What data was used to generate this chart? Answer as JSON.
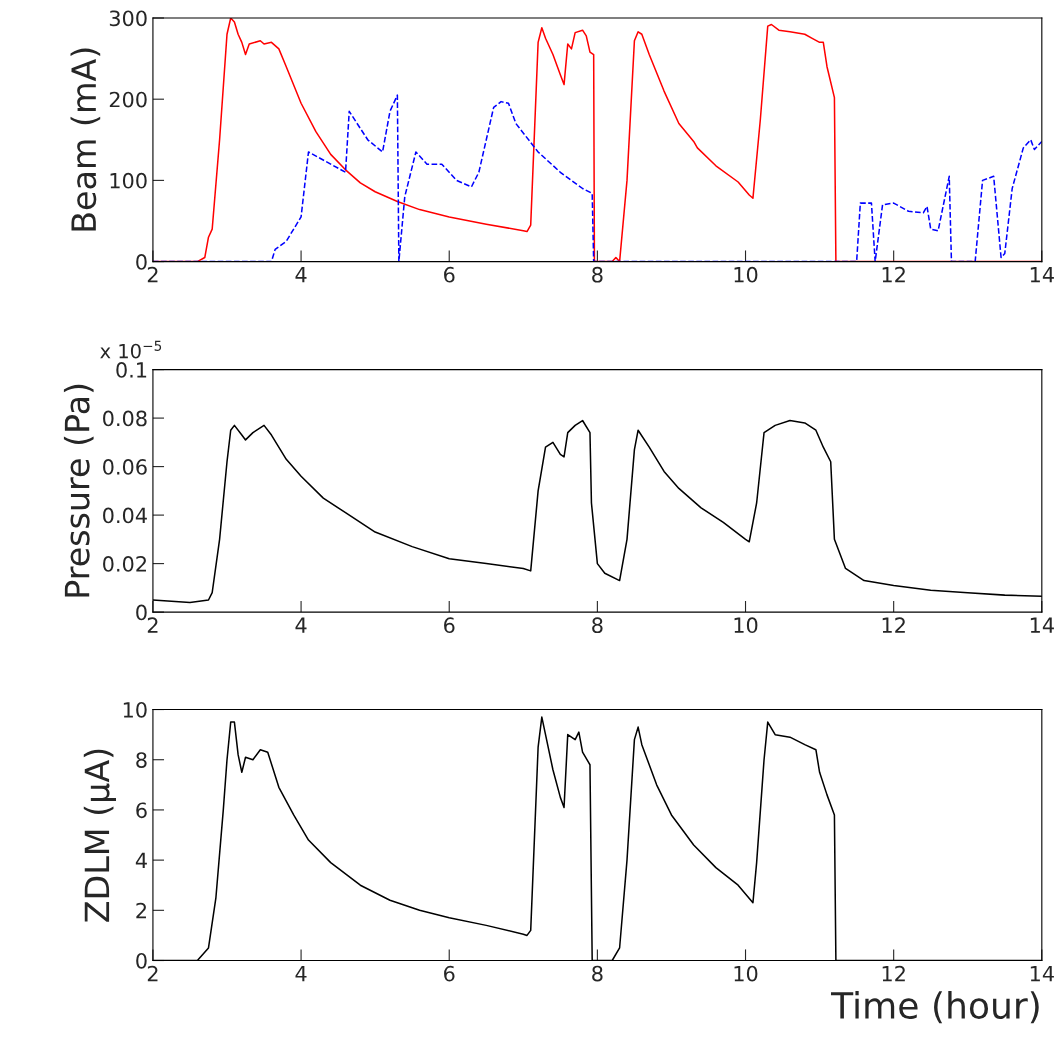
{
  "chart_data": [
    {
      "type": "line",
      "ylabel": "Beam (mA)",
      "xlim": [
        2,
        14
      ],
      "xticks": [
        2,
        4,
        6,
        8,
        10,
        12,
        14
      ],
      "ylim": [
        0,
        300
      ],
      "yticks": [
        0,
        100,
        200,
        300
      ],
      "grid": false,
      "legend": false,
      "series": [
        {
          "color": "#ff0000",
          "line_style": "solid",
          "x": [
            2,
            2.6,
            2.7,
            2.75,
            2.8,
            2.9,
            3.0,
            3.05,
            3.1,
            3.15,
            3.2,
            3.25,
            3.3,
            3.45,
            3.5,
            3.6,
            3.7,
            3.8,
            4.0,
            4.2,
            4.4,
            4.6,
            4.8,
            5.0,
            5.3,
            5.6,
            6.0,
            6.5,
            7.0,
            7.05,
            7.1,
            7.2,
            7.25,
            7.3,
            7.4,
            7.5,
            7.55,
            7.6,
            7.65,
            7.7,
            7.8,
            7.85,
            7.9,
            7.95,
            7.96,
            8.2,
            8.25,
            8.3,
            8.4,
            8.5,
            8.55,
            8.6,
            8.7,
            8.9,
            9.1,
            9.3,
            9.35,
            9.6,
            9.9,
            10.05,
            10.1,
            10.2,
            10.3,
            10.35,
            10.45,
            10.6,
            10.8,
            10.9,
            11.0,
            11.05,
            11.1,
            11.2,
            11.22,
            14
          ],
          "values": [
            0,
            0,
            5,
            30,
            40,
            150,
            280,
            300,
            295,
            280,
            270,
            255,
            268,
            272,
            268,
            270,
            262,
            240,
            195,
            160,
            132,
            113,
            97,
            86,
            74,
            64,
            55,
            46,
            38,
            37,
            45,
            270,
            288,
            275,
            255,
            230,
            218,
            268,
            262,
            282,
            285,
            278,
            258,
            255,
            0,
            0,
            5,
            0,
            100,
            272,
            283,
            280,
            255,
            210,
            170,
            148,
            140,
            118,
            98,
            82,
            78,
            175,
            290,
            292,
            285,
            283,
            280,
            275,
            270,
            270,
            240,
            202,
            0,
            0
          ]
        },
        {
          "color": "#0000ff",
          "line_style": "dashed",
          "x": [
            2,
            3.6,
            3.65,
            3.8,
            3.9,
            4.0,
            4.1,
            4.4,
            4.6,
            4.65,
            4.9,
            5.1,
            5.2,
            5.3,
            5.32,
            5.4,
            5.55,
            5.7,
            5.9,
            6.1,
            6.3,
            6.4,
            6.6,
            6.7,
            6.8,
            6.9,
            7.2,
            7.5,
            7.8,
            7.93,
            7.95,
            11.5,
            11.55,
            11.7,
            11.75,
            11.85,
            12.0,
            12.2,
            12.4,
            12.45,
            12.5,
            12.6,
            12.75,
            12.78,
            13.1,
            13.2,
            13.35,
            13.45,
            13.5,
            13.6,
            13.75,
            13.85,
            13.9,
            14
          ],
          "values": [
            0,
            0,
            15,
            25,
            40,
            55,
            135,
            120,
            110,
            185,
            150,
            135,
            185,
            205,
            0,
            80,
            135,
            120,
            120,
            100,
            92,
            110,
            190,
            197,
            195,
            170,
            135,
            110,
            90,
            84,
            0,
            0,
            72,
            72,
            0,
            70,
            72,
            62,
            60,
            68,
            40,
            38,
            105,
            0,
            0,
            100,
            105,
            5,
            10,
            90,
            140,
            150,
            138,
            148
          ]
        }
      ]
    },
    {
      "type": "line",
      "ylabel": "Pressure (Pa)",
      "annotations": [
        "x 10$^{−5}$"
      ],
      "xlim": [
        2,
        14
      ],
      "xticks": [
        2,
        4,
        6,
        8,
        10,
        12,
        14
      ],
      "ylim": [
        0,
        0.1
      ],
      "yticks": [
        0,
        0.02,
        0.04,
        0.06,
        0.08,
        0.1
      ],
      "grid": false,
      "legend": false,
      "series": [
        {
          "color": "#000000",
          "line_style": "solid",
          "x": [
            2,
            2.5,
            2.75,
            2.8,
            2.9,
            3.0,
            3.05,
            3.1,
            3.2,
            3.25,
            3.35,
            3.5,
            3.6,
            3.8,
            4.0,
            4.3,
            4.6,
            5.0,
            5.5,
            6.0,
            6.5,
            7.0,
            7.1,
            7.2,
            7.3,
            7.4,
            7.5,
            7.55,
            7.6,
            7.7,
            7.8,
            7.9,
            7.92,
            8.0,
            8.1,
            8.3,
            8.4,
            8.5,
            8.55,
            8.7,
            8.9,
            9.1,
            9.4,
            9.7,
            10.0,
            10.05,
            10.15,
            10.25,
            10.4,
            10.6,
            10.8,
            10.95,
            11.05,
            11.15,
            11.2,
            11.35,
            11.6,
            12.0,
            12.5,
            13,
            13.5,
            14
          ],
          "values": [
            0.005,
            0.004,
            0.005,
            0.008,
            0.03,
            0.062,
            0.075,
            0.077,
            0.073,
            0.071,
            0.074,
            0.077,
            0.073,
            0.063,
            0.056,
            0.047,
            0.041,
            0.033,
            0.027,
            0.022,
            0.02,
            0.018,
            0.017,
            0.05,
            0.068,
            0.07,
            0.065,
            0.064,
            0.074,
            0.077,
            0.079,
            0.074,
            0.045,
            0.02,
            0.016,
            0.013,
            0.03,
            0.067,
            0.075,
            0.068,
            0.058,
            0.051,
            0.043,
            0.037,
            0.03,
            0.029,
            0.045,
            0.074,
            0.077,
            0.079,
            0.078,
            0.075,
            0.068,
            0.062,
            0.03,
            0.018,
            0.013,
            0.011,
            0.009,
            0.008,
            0.007,
            0.0065
          ]
        }
      ]
    },
    {
      "type": "line",
      "ylabel": "ZDLM (μA)",
      "xlabel": "Time (hour)",
      "xlim": [
        2,
        14
      ],
      "xticks": [
        2,
        4,
        6,
        8,
        10,
        12,
        14
      ],
      "ylim": [
        0,
        10
      ],
      "yticks": [
        0,
        2,
        4,
        6,
        8,
        10
      ],
      "grid": false,
      "legend": false,
      "series": [
        {
          "color": "#000000",
          "line_style": "solid",
          "x": [
            2,
            2.6,
            2.75,
            2.85,
            2.95,
            3.0,
            3.05,
            3.1,
            3.15,
            3.2,
            3.25,
            3.35,
            3.45,
            3.55,
            3.7,
            3.9,
            4.1,
            4.4,
            4.8,
            5.2,
            5.6,
            6.0,
            6.5,
            7.0,
            7.05,
            7.1,
            7.2,
            7.25,
            7.3,
            7.4,
            7.5,
            7.55,
            7.6,
            7.7,
            7.75,
            7.8,
            7.9,
            7.93,
            8.2,
            8.3,
            8.4,
            8.5,
            8.55,
            8.6,
            8.8,
            9.0,
            9.3,
            9.6,
            9.9,
            10.1,
            10.15,
            10.25,
            10.3,
            10.4,
            10.6,
            10.8,
            10.95,
            11.0,
            11.1,
            11.2,
            11.22,
            14
          ],
          "values": [
            0,
            0,
            0.5,
            2.5,
            6,
            8,
            9.5,
            9.5,
            8.2,
            7.5,
            8.1,
            8.0,
            8.4,
            8.3,
            6.9,
            5.8,
            4.8,
            3.9,
            3.0,
            2.4,
            2.0,
            1.7,
            1.4,
            1.05,
            1.0,
            1.2,
            8.5,
            9.7,
            9.0,
            7.6,
            6.5,
            6.1,
            9.0,
            8.8,
            9.1,
            8.3,
            7.8,
            0,
            0,
            0.5,
            4,
            8.8,
            9.3,
            8.6,
            7.0,
            5.8,
            4.6,
            3.7,
            3.0,
            2.3,
            3.9,
            8.0,
            9.5,
            9.0,
            8.9,
            8.6,
            8.4,
            7.5,
            6.6,
            5.8,
            0,
            0
          ]
        }
      ]
    }
  ]
}
